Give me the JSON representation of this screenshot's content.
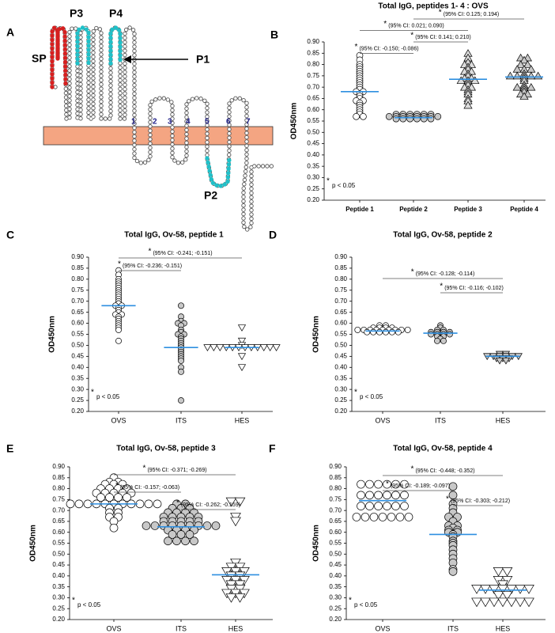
{
  "diagram": {
    "panel": "A",
    "labels": [
      "SP",
      "P3",
      "P4",
      "P1",
      "P2"
    ],
    "segments": [
      "1",
      "2",
      "3",
      "4",
      "5",
      "6",
      "7"
    ]
  },
  "chart_data": [
    {
      "type": "dotplot",
      "panel": "B",
      "title": "Total IgG, peptides 1- 4 : OVS",
      "ylabel": "OD450nm",
      "star": "*",
      "note": "p < 0.05",
      "categories": [
        "Peptide 1",
        "Peptide 2",
        "Peptide 3",
        "Peptide 4"
      ],
      "markers": [
        "circle",
        "circle",
        "triangle-up",
        "triangle-up"
      ],
      "fills": [
        "#ffffff",
        "#c8c8c8",
        "#dcdcdc",
        "#c8c8c8"
      ],
      "median_color": "#2e8fe0",
      "values": [
        [
          0.84,
          0.82,
          0.8,
          0.79,
          0.78,
          0.77,
          0.76,
          0.75,
          0.74,
          0.73,
          0.72,
          0.71,
          0.7,
          0.69,
          0.68,
          0.68,
          0.67,
          0.66,
          0.65,
          0.64,
          0.64,
          0.63,
          0.62,
          0.61,
          0.6,
          0.59,
          0.58,
          0.57,
          0.57
        ],
        [
          0.58,
          0.58,
          0.58,
          0.58,
          0.58,
          0.58,
          0.57,
          0.57,
          0.57,
          0.57,
          0.57,
          0.57,
          0.57,
          0.57,
          0.56,
          0.56,
          0.56,
          0.56,
          0.56,
          0.56
        ],
        [
          0.85,
          0.83,
          0.81,
          0.8,
          0.8,
          0.79,
          0.78,
          0.77,
          0.77,
          0.76,
          0.75,
          0.74,
          0.74,
          0.73,
          0.73,
          0.73,
          0.72,
          0.71,
          0.7,
          0.7,
          0.69,
          0.68,
          0.67,
          0.65,
          0.64,
          0.62
        ],
        [
          0.83,
          0.83,
          0.82,
          0.8,
          0.8,
          0.78,
          0.78,
          0.78,
          0.76,
          0.75,
          0.75,
          0.75,
          0.75,
          0.75,
          0.74,
          0.73,
          0.71,
          0.7,
          0.7,
          0.7,
          0.69,
          0.68,
          0.67,
          0.67,
          0.66
        ]
      ],
      "medians": [
        0.68,
        0.565,
        0.735,
        0.745
      ],
      "comparisons": [
        {
          "label": "(95% CI: 0.125;  0.194)",
          "groups": [
            1,
            3
          ]
        },
        {
          "label": "(95% CI: 0.021;  0.090)",
          "groups": [
            0,
            2
          ]
        },
        {
          "label": "(95% CI: 0.141;  0.210)",
          "groups": [
            1,
            2
          ]
        },
        {
          "label": "(95% CI: -0.150; -0.086)",
          "groups": [
            0,
            1
          ]
        }
      ],
      "ylim": [
        0.2,
        0.9
      ],
      "yticks": [
        {
          "value": 0.2,
          "label": "0.20"
        },
        {
          "value": 0.25,
          "label": "0.25"
        },
        {
          "value": 0.3,
          "label": "0.30"
        },
        {
          "value": 0.35,
          "label": "0.35"
        },
        {
          "value": 0.4,
          "label": "0.40"
        },
        {
          "value": 0.45,
          "label": "0.45"
        },
        {
          "value": 0.5,
          "label": "0.50"
        },
        {
          "value": 0.55,
          "label": "0.55"
        },
        {
          "value": 0.6,
          "label": "0.60"
        },
        {
          "value": 0.65,
          "label": "0.65"
        },
        {
          "value": 0.7,
          "label": "0.70"
        },
        {
          "value": 0.75,
          "label": "0.75"
        },
        {
          "value": 0.8,
          "label": "0.80"
        },
        {
          "value": 0.85,
          "label": "0.85"
        },
        {
          "value": 0.9,
          "label": "0.90"
        }
      ]
    },
    {
      "type": "dotplot",
      "panel": "C",
      "title": "Total IgG, Ov-58, peptide 1",
      "ylabel": "OD450nm",
      "star": "*",
      "note": "p < 0.05",
      "categories": [
        "OVS",
        "ITS",
        "HES"
      ],
      "markers": [
        "circle",
        "circle",
        "triangle-down"
      ],
      "fills": [
        "#ffffff",
        "#c8c8c8",
        "#ffffff"
      ],
      "median_color": "#2e8fe0",
      "values": [
        [
          0.84,
          0.82,
          0.8,
          0.79,
          0.78,
          0.77,
          0.76,
          0.75,
          0.74,
          0.73,
          0.72,
          0.71,
          0.7,
          0.69,
          0.68,
          0.68,
          0.67,
          0.66,
          0.65,
          0.64,
          0.64,
          0.63,
          0.62,
          0.61,
          0.6,
          0.59,
          0.58,
          0.57,
          0.52
        ],
        [
          0.68,
          0.63,
          0.61,
          0.6,
          0.6,
          0.59,
          0.57,
          0.56,
          0.55,
          0.55,
          0.54,
          0.53,
          0.52,
          0.51,
          0.5,
          0.49,
          0.48,
          0.47,
          0.46,
          0.45,
          0.44,
          0.43,
          0.4,
          0.38,
          0.25
        ],
        [
          0.58,
          0.52,
          0.5,
          0.49,
          0.49,
          0.49,
          0.49,
          0.49,
          0.49,
          0.49,
          0.49,
          0.49,
          0.49,
          0.49,
          0.49,
          0.45,
          0.4
        ]
      ],
      "medians": [
        0.68,
        0.49,
        0.49
      ],
      "comparisons": [
        {
          "label": "(95% CI: -0.241; -0.151)",
          "groups": [
            0,
            2
          ]
        },
        {
          "label": "(95% CI: -0.236; -0.151)",
          "groups": [
            0,
            1
          ]
        }
      ],
      "ylim": [
        0.2,
        0.9
      ],
      "yticks": [
        {
          "value": 0.2,
          "label": "0.20"
        },
        {
          "value": 0.25,
          "label": "0.25"
        },
        {
          "value": 0.3,
          "label": "0.30"
        },
        {
          "value": 0.35,
          "label": "0.35"
        },
        {
          "value": 0.4,
          "label": "0.40"
        },
        {
          "value": 0.45,
          "label": "0.45"
        },
        {
          "value": 0.5,
          "label": "0.50"
        },
        {
          "value": 0.55,
          "label": "0.55"
        },
        {
          "value": 0.6,
          "label": "0.60"
        },
        {
          "value": 0.65,
          "label": "0.65"
        },
        {
          "value": 0.7,
          "label": "0.70"
        },
        {
          "value": 0.75,
          "label": "0.75"
        },
        {
          "value": 0.8,
          "label": "0.80"
        },
        {
          "value": 0.85,
          "label": "0.85"
        },
        {
          "value": 0.9,
          "label": "0.90"
        }
      ]
    },
    {
      "type": "dotplot",
      "panel": "D",
      "title": "Total IgG, Ov-58, peptide 2",
      "ylabel": "OD450nm",
      "star": "*",
      "note": "p < 0.05",
      "categories": [
        "OVS",
        "ITS",
        "HES"
      ],
      "markers": [
        "circle",
        "circle",
        "triangle-down"
      ],
      "fills": [
        "#ffffff",
        "#c8c8c8",
        "#c8c8c8"
      ],
      "median_color": "#2e8fe0",
      "values": [
        [
          0.59,
          0.59,
          0.58,
          0.58,
          0.58,
          0.58,
          0.57,
          0.57,
          0.57,
          0.57,
          0.57,
          0.57,
          0.57,
          0.57,
          0.57,
          0.56,
          0.56,
          0.56,
          0.56,
          0.56,
          0.56
        ],
        [
          0.59,
          0.58,
          0.57,
          0.57,
          0.56,
          0.56,
          0.56,
          0.56,
          0.55,
          0.55,
          0.55,
          0.55,
          0.54,
          0.54,
          0.53,
          0.52,
          0.52
        ],
        [
          0.46,
          0.46,
          0.45,
          0.45,
          0.45,
          0.45,
          0.45,
          0.45,
          0.44,
          0.44,
          0.44,
          0.43,
          0.43
        ]
      ],
      "medians": [
        0.565,
        0.555,
        0.45
      ],
      "comparisons": [
        {
          "label": "(95% CI: -0.128; -0.114)",
          "groups": [
            0,
            2
          ]
        },
        {
          "label": "(95% CI: -0.116; -0.102)",
          "groups": [
            1,
            2
          ]
        }
      ],
      "ylim": [
        0.2,
        0.9
      ],
      "yticks": [
        {
          "value": 0.2,
          "label": "0.20"
        },
        {
          "value": 0.25,
          "label": "0.25"
        },
        {
          "value": 0.3,
          "label": "0.30"
        },
        {
          "value": 0.35,
          "label": "0.35"
        },
        {
          "value": 0.4,
          "label": "0.40"
        },
        {
          "value": 0.45,
          "label": "0.45"
        },
        {
          "value": 0.5,
          "label": "0.50"
        },
        {
          "value": 0.55,
          "label": "0.55"
        },
        {
          "value": 0.6,
          "label": "0.60"
        },
        {
          "value": 0.65,
          "label": "0.65"
        },
        {
          "value": 0.7,
          "label": "0.70"
        },
        {
          "value": 0.75,
          "label": "0.75"
        },
        {
          "value": 0.8,
          "label": "0.80"
        },
        {
          "value": 0.85,
          "label": "0.85"
        },
        {
          "value": 0.9,
          "label": "0.90"
        }
      ]
    },
    {
      "type": "dotplot",
      "panel": "E",
      "title": "Total IgG, Ov-58, peptide 3",
      "ylabel": "OD450nm",
      "star": "*",
      "note": "p < 0.05",
      "categories": [
        "OVS",
        "ITS",
        "HES"
      ],
      "markers": [
        "circle",
        "circle",
        "triangle-down"
      ],
      "fills": [
        "#ffffff",
        "#c8c8c8",
        "#ffffff"
      ],
      "median_color": "#2e8fe0",
      "values": [
        [
          0.85,
          0.83,
          0.83,
          0.82,
          0.82,
          0.82,
          0.8,
          0.8,
          0.8,
          0.8,
          0.78,
          0.78,
          0.78,
          0.78,
          0.78,
          0.76,
          0.76,
          0.76,
          0.76,
          0.73,
          0.73,
          0.73,
          0.73,
          0.73,
          0.73,
          0.73,
          0.73,
          0.73,
          0.73,
          0.73,
          0.71,
          0.71,
          0.69,
          0.69,
          0.67,
          0.67,
          0.65,
          0.62
        ],
        [
          0.73,
          0.73,
          0.71,
          0.71,
          0.71,
          0.69,
          0.69,
          0.69,
          0.69,
          0.67,
          0.67,
          0.67,
          0.67,
          0.67,
          0.65,
          0.65,
          0.65,
          0.65,
          0.65,
          0.63,
          0.63,
          0.63,
          0.63,
          0.63,
          0.63,
          0.63,
          0.63,
          0.63,
          0.61,
          0.61,
          0.61,
          0.61,
          0.59,
          0.59,
          0.59,
          0.56,
          0.56,
          0.56,
          0.56
        ],
        [
          0.74,
          0.74,
          0.67,
          0.65,
          0.46,
          0.44,
          0.44,
          0.42,
          0.42,
          0.42,
          0.4,
          0.4,
          0.38,
          0.38,
          0.38,
          0.36,
          0.36,
          0.34,
          0.34,
          0.32,
          0.32,
          0.32,
          0.3,
          0.3
        ]
      ],
      "medians": [
        0.73,
        0.625,
        0.405
      ],
      "comparisons": [
        {
          "label": "(95% CI: -0.371; -0.269)",
          "groups": [
            0,
            2
          ]
        },
        {
          "label": "(95% CI: -0.157; -0.063)",
          "groups": [
            0,
            1
          ]
        },
        {
          "label": "(95% CI: -0.262; -0.159)",
          "groups": [
            1,
            2
          ]
        }
      ],
      "ylim": [
        0.2,
        0.9
      ],
      "yticks": [
        {
          "value": 0.2,
          "label": "0.20"
        },
        {
          "value": 0.25,
          "label": "0.25"
        },
        {
          "value": 0.3,
          "label": "0.30"
        },
        {
          "value": 0.35,
          "label": "0.35"
        },
        {
          "value": 0.4,
          "label": "0.40"
        },
        {
          "value": 0.45,
          "label": "0.45"
        },
        {
          "value": 0.5,
          "label": "0.50"
        },
        {
          "value": 0.55,
          "label": "0.55"
        },
        {
          "value": 0.6,
          "label": "0.60"
        },
        {
          "value": 0.65,
          "label": "0.65"
        },
        {
          "value": 0.7,
          "label": "0.70"
        },
        {
          "value": 0.75,
          "label": "0.75"
        },
        {
          "value": 0.8,
          "label": "0.80"
        },
        {
          "value": 0.85,
          "label": "0.85"
        },
        {
          "value": 0.9,
          "label": "0.90"
        }
      ]
    },
    {
      "type": "dotplot",
      "panel": "F",
      "title": "Total IgG, Ov-58, peptide 4",
      "ylabel": "OD450nm",
      "star": "*",
      "note": "p < 0.05",
      "categories": [
        "OVS",
        "ITS",
        "HES"
      ],
      "markers": [
        "circle",
        "circle",
        "triangle-down"
      ],
      "fills": [
        "#ffffff",
        "#c8c8c8",
        "#ffffff"
      ],
      "median_color": "#2e8fe0",
      "values": [
        [
          0.82,
          0.82,
          0.82,
          0.82,
          0.82,
          0.82,
          0.77,
          0.77,
          0.77,
          0.77,
          0.77,
          0.77,
          0.72,
          0.72,
          0.72,
          0.72,
          0.72,
          0.72,
          0.67,
          0.67,
          0.67,
          0.67,
          0.67,
          0.67,
          0.67
        ],
        [
          0.81,
          0.77,
          0.73,
          0.71,
          0.69,
          0.67,
          0.67,
          0.65,
          0.63,
          0.63,
          0.62,
          0.61,
          0.61,
          0.6,
          0.6,
          0.59,
          0.58,
          0.56,
          0.55,
          0.54,
          0.52,
          0.5,
          0.48,
          0.46,
          0.43,
          0.42
        ],
        [
          0.42,
          0.42,
          0.38,
          0.38,
          0.36,
          0.34,
          0.34,
          0.34,
          0.34,
          0.34,
          0.34,
          0.34,
          0.31,
          0.31,
          0.28,
          0.28,
          0.28,
          0.28,
          0.28,
          0.28,
          0.28
        ]
      ],
      "medians": [
        0.745,
        0.59,
        0.335
      ],
      "comparisons": [
        {
          "label": "(95% CI: -0.448; -0.352)",
          "groups": [
            0,
            2
          ]
        },
        {
          "label": "(95% CI: -0.189; -0.097)",
          "groups": [
            0,
            1
          ]
        },
        {
          "label": "(95% CI: -0.303; -0.212)",
          "groups": [
            1,
            2
          ]
        }
      ],
      "ylim": [
        0.2,
        0.9
      ],
      "yticks": [
        {
          "value": 0.2,
          "label": "0.20"
        },
        {
          "value": 0.25,
          "label": "0.25"
        },
        {
          "value": 0.3,
          "label": "0.30"
        },
        {
          "value": 0.35,
          "label": "0.35"
        },
        {
          "value": 0.4,
          "label": "0.40"
        },
        {
          "value": 0.45,
          "label": "0.45"
        },
        {
          "value": 0.5,
          "label": "0.50"
        },
        {
          "value": 0.55,
          "label": "0.55"
        },
        {
          "value": 0.6,
          "label": "0.60"
        },
        {
          "value": 0.65,
          "label": "0.65"
        },
        {
          "value": 0.7,
          "label": "0.70"
        },
        {
          "value": 0.75,
          "label": "0.75"
        },
        {
          "value": 0.8,
          "label": "0.80"
        },
        {
          "value": 0.85,
          "label": "0.85"
        },
        {
          "value": 0.9,
          "label": "0.90"
        }
      ]
    }
  ]
}
